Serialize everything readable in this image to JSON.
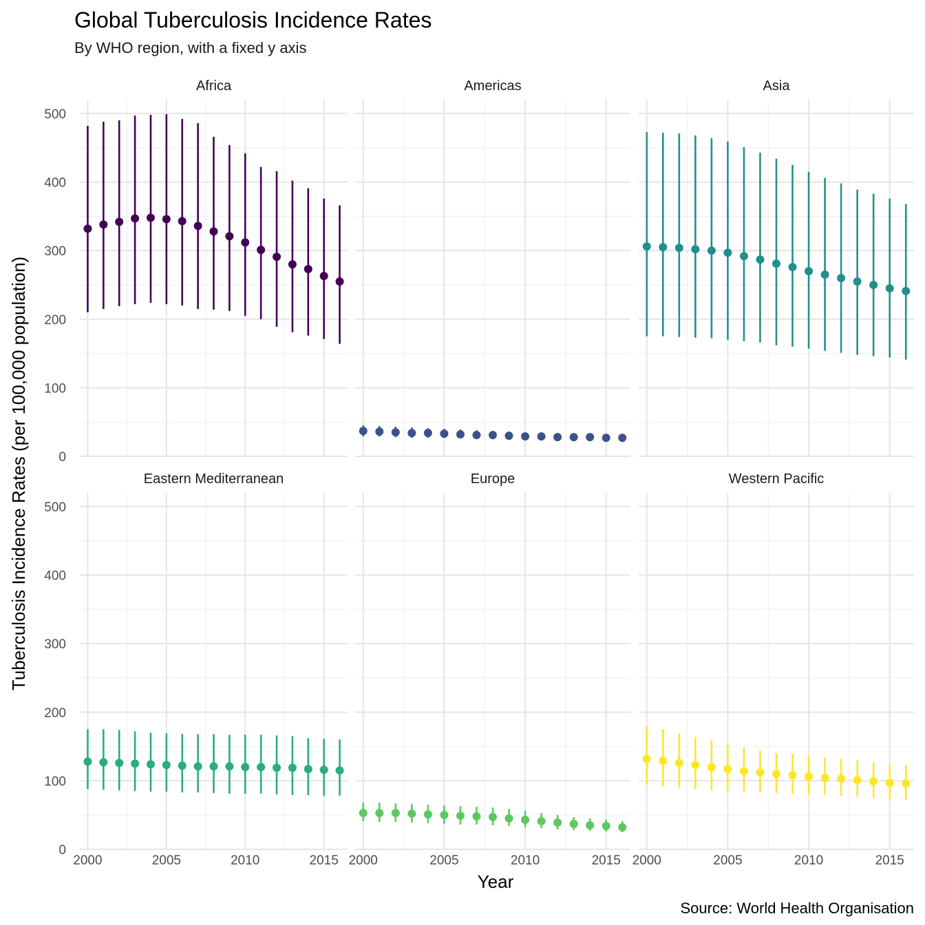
{
  "chart_data": {
    "type": "scatter",
    "title": "Global Tuberculosis Incidence Rates",
    "subtitle": "By WHO region, with a fixed y axis",
    "xlabel": "Year",
    "ylabel": "Tuberculosis Incidence Rates (per 100,000 population)",
    "caption": "Source: World Health Organisation",
    "xlim": [
      1999.5,
      2016.5
    ],
    "ylim": [
      0,
      520
    ],
    "x_ticks": [
      "2000",
      "2005",
      "2010",
      "2015"
    ],
    "y_ticks": [
      "0",
      "100",
      "200",
      "300",
      "400",
      "500"
    ],
    "grid": true,
    "x": [
      2000,
      2001,
      2002,
      2003,
      2004,
      2005,
      2006,
      2007,
      2008,
      2009,
      2010,
      2011,
      2012,
      2013,
      2014,
      2015,
      2016
    ],
    "series": [
      {
        "name": "Africa",
        "color": "#440154",
        "values": [
          332,
          338,
          342,
          347,
          348,
          346,
          343,
          336,
          328,
          321,
          312,
          301,
          291,
          280,
          273,
          263,
          255
        ],
        "lower": [
          210,
          215,
          219,
          222,
          224,
          222,
          220,
          215,
          214,
          212,
          205,
          200,
          189,
          181,
          176,
          171,
          164
        ],
        "upper": [
          482,
          488,
          490,
          497,
          498,
          499,
          492,
          486,
          466,
          454,
          442,
          422,
          416,
          402,
          391,
          376,
          366
        ]
      },
      {
        "name": "Americas",
        "color": "#3B528B",
        "values": [
          37,
          36,
          35,
          34,
          34,
          33,
          32,
          31,
          31,
          30,
          29,
          29,
          28,
          28,
          28,
          27,
          27
        ],
        "lower": [
          29,
          29,
          28,
          27,
          27,
          27,
          26,
          26,
          25,
          25,
          24,
          24,
          24,
          24,
          24,
          23,
          23
        ],
        "upper": [
          45,
          44,
          43,
          42,
          41,
          40,
          39,
          38,
          37,
          36,
          35,
          35,
          34,
          33,
          33,
          32,
          32
        ]
      },
      {
        "name": "Asia",
        "color": "#21908C",
        "values": [
          306,
          305,
          304,
          302,
          300,
          297,
          292,
          287,
          281,
          276,
          270,
          265,
          260,
          255,
          250,
          245,
          241
        ],
        "lower": [
          175,
          175,
          174,
          173,
          172,
          170,
          168,
          166,
          162,
          160,
          157,
          154,
          151,
          148,
          146,
          144,
          141
        ],
        "upper": [
          473,
          472,
          471,
          468,
          464,
          459,
          451,
          443,
          434,
          425,
          415,
          406,
          398,
          389,
          383,
          376,
          368
        ]
      },
      {
        "name": "Eastern Mediterranean",
        "color": "#27AD81",
        "values": [
          128,
          127,
          126,
          125,
          124,
          123,
          122,
          121,
          121,
          121,
          120,
          120,
          119,
          119,
          117,
          116,
          115
        ],
        "lower": [
          88,
          87,
          86,
          85,
          84,
          84,
          83,
          83,
          82,
          81,
          81,
          81,
          80,
          79,
          79,
          78,
          78
        ],
        "upper": [
          175,
          175,
          174,
          172,
          170,
          169,
          168,
          168,
          168,
          167,
          167,
          167,
          166,
          165,
          162,
          161,
          160
        ]
      },
      {
        "name": "Europe",
        "color": "#5DC863",
        "values": [
          53,
          53,
          53,
          52,
          51,
          50,
          49,
          48,
          47,
          45,
          43,
          41,
          39,
          37,
          35,
          34,
          32
        ],
        "lower": [
          41,
          40,
          40,
          39,
          38,
          37,
          36,
          36,
          35,
          34,
          32,
          31,
          29,
          28,
          27,
          26,
          25
        ],
        "upper": [
          68,
          68,
          67,
          66,
          65,
          64,
          63,
          62,
          61,
          59,
          56,
          53,
          50,
          47,
          45,
          43,
          41
        ]
      },
      {
        "name": "Western Pacific",
        "color": "#FDE725",
        "values": [
          132,
          129,
          126,
          123,
          120,
          117,
          114,
          112,
          110,
          108,
          106,
          104,
          103,
          101,
          99,
          97,
          96
        ],
        "lower": [
          94,
          92,
          90,
          88,
          86,
          85,
          84,
          83,
          82,
          81,
          80,
          79,
          78,
          77,
          75,
          74,
          72
        ],
        "upper": [
          180,
          175,
          169,
          164,
          159,
          154,
          149,
          144,
          140,
          139,
          136,
          134,
          132,
          130,
          127,
          125,
          123
        ]
      }
    ]
  }
}
